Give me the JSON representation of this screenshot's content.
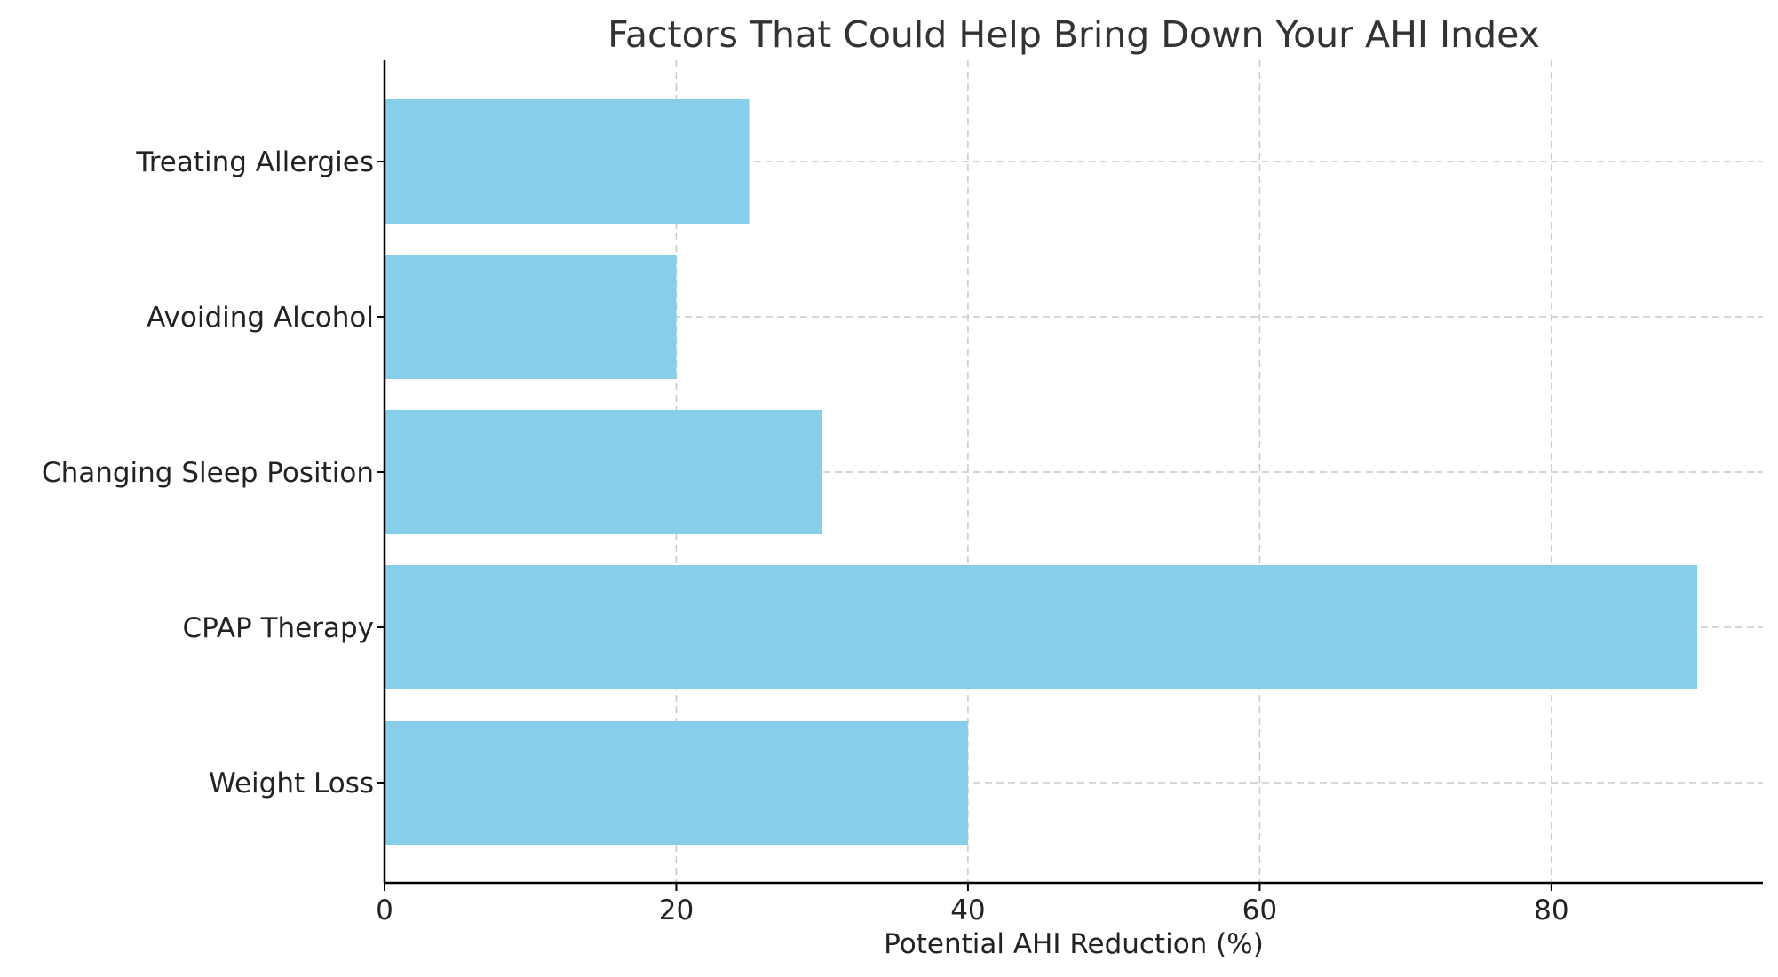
{
  "chart_data": {
    "type": "bar",
    "orientation": "horizontal",
    "title": "Factors That Could Help Bring Down Your AHI Index",
    "xlabel": "Potential AHI Reduction (%)",
    "ylabel": "",
    "categories": [
      "Weight Loss",
      "CPAP Therapy",
      "Changing Sleep Position",
      "Avoiding Alcohol",
      "Treating Allergies"
    ],
    "values": [
      40,
      90,
      30,
      20,
      25
    ],
    "xlim": [
      0,
      94.5
    ],
    "xticks": [
      0,
      20,
      40,
      60,
      80
    ],
    "grid": true,
    "bar_color": "#87CEEB"
  }
}
